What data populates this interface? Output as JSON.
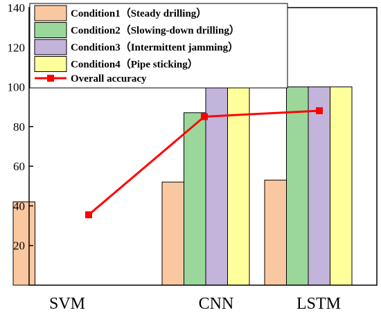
{
  "chart_data": {
    "type": "bar",
    "categories": [
      "SVM",
      "CNN",
      "LSTM"
    ],
    "series": [
      {
        "name": "Condition1（Steady drilling）",
        "values": [
          42,
          52,
          53
        ],
        "color": "#FAC8A0"
      },
      {
        "name": "Condition2（Slowing-down drilling）",
        "values": [
          0,
          87,
          100
        ],
        "color": "#9BD79B"
      },
      {
        "name": "Condition3（Intermittent jamming）",
        "values": [
          0,
          100,
          100
        ],
        "color": "#C3B4DC"
      },
      {
        "name": "Condition4（Pipe sticking）",
        "values": [
          0,
          100,
          100
        ],
        "color": "#FFFF9B"
      }
    ],
    "line_series": {
      "name": "Overall accuracy",
      "values": [
        35.5,
        85,
        88
      ],
      "color": "#FF0000"
    },
    "ylim": [
      0,
      140
    ],
    "yticks": [
      20,
      40,
      60,
      80,
      100,
      120,
      140
    ],
    "title": "",
    "xlabel": "",
    "ylabel": "",
    "legend_position": "top-left"
  }
}
